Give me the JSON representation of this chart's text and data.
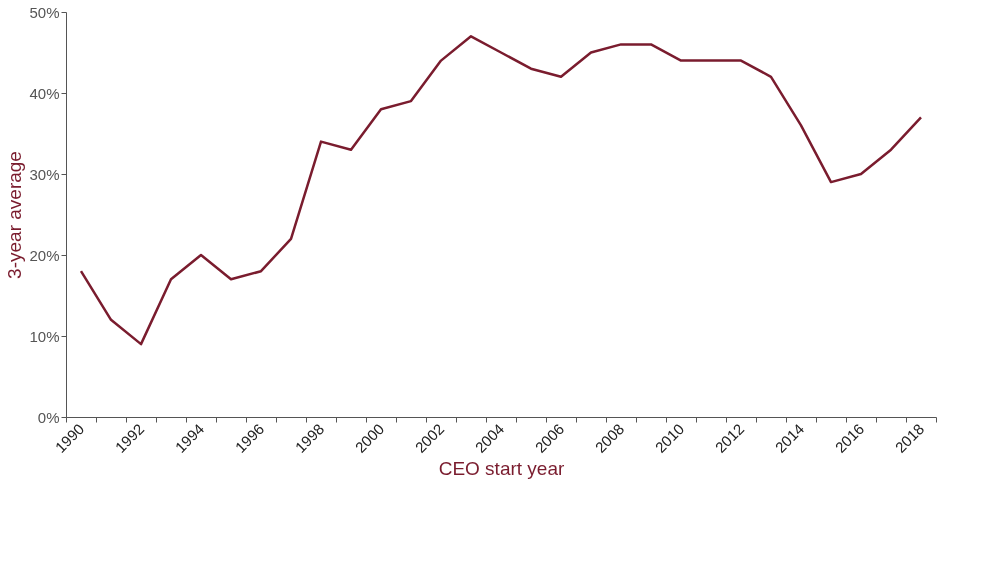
{
  "chart_data": {
    "type": "line",
    "xlabel": "CEO start year",
    "ylabel": "3-year average",
    "categories": [
      "1990",
      null,
      "1992",
      null,
      "1994",
      null,
      "1996",
      null,
      "1998",
      null,
      "2000",
      null,
      "2002",
      null,
      "2004",
      null,
      "2006",
      null,
      "2008",
      null,
      "2010",
      null,
      "2012",
      null,
      "2014",
      null,
      "2016",
      null,
      "2018"
    ],
    "series": [
      {
        "color": "#7a1c2e",
        "values": [
          18,
          12,
          9,
          17,
          20,
          17,
          18,
          22,
          34,
          33,
          38,
          39,
          44,
          47,
          45,
          43,
          42,
          45,
          46,
          46,
          44,
          44,
          44,
          42,
          36,
          29,
          30,
          33,
          37
        ]
      }
    ],
    "ylim": [
      0,
      50
    ],
    "yticks": [
      {
        "value": 0,
        "label": "0%"
      },
      {
        "value": 10,
        "label": "10%"
      },
      {
        "value": 20,
        "label": "20%"
      },
      {
        "value": 30,
        "label": "30%"
      },
      {
        "value": 40,
        "label": "40%"
      },
      {
        "value": 50,
        "label": "50%"
      }
    ],
    "grid": false,
    "marker": "none",
    "line_style": "solid"
  }
}
